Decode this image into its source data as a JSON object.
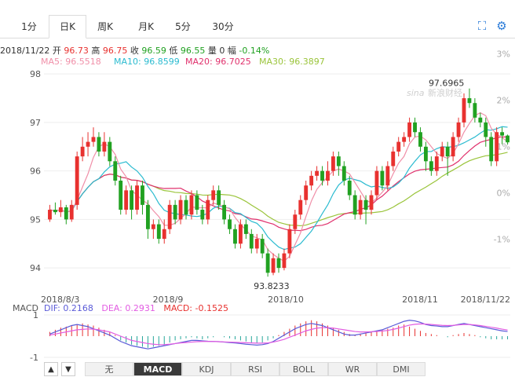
{
  "tabs": [
    "1分",
    "日K",
    "周K",
    "月K",
    "5分",
    "30分"
  ],
  "active_tab": 1,
  "controls": {
    "fullscreen_icon": "fullscreen-icon",
    "settings_icon": "settings-icon"
  },
  "quote": {
    "date": "2018/11/22",
    "open_label": "开",
    "open": "96.73",
    "high_label": "高",
    "high": "96.75",
    "close_label": "收",
    "close": "96.59",
    "low_label": "低",
    "low": "96.55",
    "vol_label": "量",
    "vol": "0",
    "change_label": "幅",
    "change": "-0.14%"
  },
  "ma": {
    "ma5": "MA5: 96.5518",
    "ma10": "MA10: 96.8599",
    "ma20": "MA20: 96.7025",
    "ma30": "MA30: 96.3897"
  },
  "colors": {
    "up": "#e8312f",
    "down": "#21a121",
    "ma5": "#f08fa8",
    "ma10": "#2bbbd0",
    "ma20": "#e0306c",
    "ma30": "#9ac43a",
    "dif": "#5b5bd8",
    "dea": "#e25ce2"
  },
  "chart_data": {
    "type": "candlestick",
    "y_ticks": [
      "98",
      "97",
      "96",
      "95",
      "94"
    ],
    "pct_ticks": [
      "3%",
      "2%",
      "1%",
      "0%",
      "-1%"
    ],
    "x_ticks": [
      "2018/8/3",
      "2018/9",
      "2018/10",
      "2018/11",
      "2018/11/22"
    ],
    "annotations": {
      "max": "97.6965",
      "min": "93.8233"
    },
    "watermark": "新浪财经",
    "candles": [
      [
        95.0,
        95.2,
        94.95,
        95.3
      ],
      [
        95.2,
        95.15,
        95.1,
        95.35
      ],
      [
        95.15,
        95.25,
        95.05,
        95.4
      ],
      [
        95.25,
        95.0,
        94.9,
        95.3
      ],
      [
        95.0,
        95.3,
        94.95,
        95.4
      ],
      [
        95.3,
        96.3,
        95.2,
        96.4
      ],
      [
        96.3,
        96.5,
        96.2,
        96.7
      ],
      [
        96.5,
        96.6,
        96.3,
        96.8
      ],
      [
        96.6,
        96.7,
        96.5,
        96.9
      ],
      [
        96.7,
        96.4,
        96.3,
        96.8
      ],
      [
        96.4,
        96.6,
        96.3,
        96.8
      ],
      [
        96.6,
        96.2,
        96.1,
        96.7
      ],
      [
        96.2,
        95.8,
        95.7,
        96.3
      ],
      [
        95.8,
        95.2,
        95.1,
        95.9
      ],
      [
        95.2,
        95.6,
        95.1,
        95.7
      ],
      [
        95.6,
        95.2,
        95.0,
        95.7
      ],
      [
        95.2,
        95.7,
        95.1,
        95.8
      ],
      [
        95.7,
        95.3,
        95.1,
        95.8
      ],
      [
        95.3,
        94.8,
        94.6,
        95.4
      ],
      [
        94.8,
        94.9,
        94.6,
        95.0
      ],
      [
        94.9,
        94.6,
        94.5,
        95.0
      ],
      [
        94.6,
        94.8,
        94.5,
        95.0
      ],
      [
        94.8,
        95.3,
        94.7,
        95.4
      ],
      [
        95.3,
        95.0,
        94.9,
        95.4
      ],
      [
        95.0,
        95.4,
        94.9,
        95.5
      ],
      [
        95.4,
        95.1,
        95.0,
        95.5
      ],
      [
        95.1,
        95.5,
        95.0,
        95.6
      ],
      [
        95.5,
        95.2,
        95.1,
        95.6
      ],
      [
        95.2,
        95.0,
        94.9,
        95.3
      ],
      [
        95.0,
        95.4,
        94.9,
        95.5
      ],
      [
        95.4,
        95.6,
        95.3,
        95.7
      ],
      [
        95.6,
        95.3,
        95.2,
        95.7
      ],
      [
        95.3,
        95.0,
        94.9,
        95.4
      ],
      [
        95.0,
        94.8,
        94.7,
        95.1
      ],
      [
        94.8,
        94.5,
        94.4,
        94.9
      ],
      [
        94.5,
        94.9,
        94.4,
        95.0
      ],
      [
        94.9,
        94.7,
        94.6,
        95.0
      ],
      [
        94.7,
        94.4,
        94.3,
        94.8
      ],
      [
        94.4,
        94.6,
        94.3,
        94.7
      ],
      [
        94.6,
        94.3,
        94.2,
        94.7
      ],
      [
        94.3,
        93.9,
        93.82,
        94.4
      ],
      [
        93.9,
        94.2,
        93.85,
        94.3
      ],
      [
        94.2,
        94.0,
        93.9,
        94.3
      ],
      [
        94.0,
        94.3,
        93.95,
        94.4
      ],
      [
        94.3,
        94.8,
        94.2,
        94.9
      ],
      [
        94.8,
        95.1,
        94.7,
        95.2
      ],
      [
        95.1,
        95.4,
        95.0,
        95.5
      ],
      [
        95.4,
        95.7,
        95.3,
        95.8
      ],
      [
        95.7,
        95.9,
        95.6,
        96.0
      ],
      [
        95.9,
        96.0,
        95.8,
        96.1
      ],
      [
        96.0,
        95.8,
        95.7,
        96.1
      ],
      [
        95.8,
        96.0,
        95.7,
        96.2
      ],
      [
        96.0,
        96.3,
        95.9,
        96.4
      ],
      [
        96.3,
        96.1,
        95.9,
        96.4
      ],
      [
        96.1,
        95.8,
        95.7,
        96.2
      ],
      [
        95.8,
        95.5,
        95.4,
        95.9
      ],
      [
        95.5,
        95.1,
        95.0,
        95.6
      ],
      [
        95.1,
        95.4,
        95.0,
        95.5
      ],
      [
        95.4,
        95.2,
        94.9,
        95.5
      ],
      [
        95.2,
        95.5,
        95.1,
        95.6
      ],
      [
        95.5,
        96.0,
        95.4,
        96.1
      ],
      [
        96.0,
        95.7,
        95.6,
        96.1
      ],
      [
        95.7,
        96.1,
        95.6,
        96.2
      ],
      [
        96.1,
        96.4,
        96.0,
        96.5
      ],
      [
        96.4,
        96.6,
        96.3,
        96.7
      ],
      [
        96.6,
        96.7,
        96.5,
        96.8
      ],
      [
        96.7,
        97.0,
        96.6,
        97.1
      ],
      [
        97.0,
        96.8,
        96.7,
        97.1
      ],
      [
        96.8,
        96.5,
        96.4,
        96.9
      ],
      [
        96.5,
        96.2,
        96.0,
        96.6
      ],
      [
        96.2,
        96.0,
        95.9,
        96.3
      ],
      [
        96.0,
        96.3,
        95.9,
        96.4
      ],
      [
        96.3,
        96.5,
        96.2,
        96.6
      ],
      [
        96.5,
        96.3,
        95.9,
        96.6
      ],
      [
        96.3,
        96.7,
        96.2,
        96.8
      ],
      [
        96.7,
        97.0,
        96.6,
        97.1
      ],
      [
        97.0,
        97.5,
        96.9,
        97.6
      ],
      [
        97.5,
        97.4,
        97.3,
        97.7
      ],
      [
        97.4,
        97.1,
        97.0,
        97.5
      ],
      [
        97.1,
        97.0,
        96.9,
        97.2
      ],
      [
        97.0,
        96.7,
        96.5,
        97.1
      ],
      [
        96.7,
        96.2,
        96.1,
        96.8
      ],
      [
        96.2,
        96.8,
        96.1,
        96.9
      ],
      [
        96.8,
        96.73,
        96.55,
        96.9
      ],
      [
        96.73,
        96.59,
        96.55,
        96.75
      ]
    ],
    "ma5_label": "MA5",
    "ma10_label": "MA10",
    "ma20_label": "MA20",
    "ma30_label": "MA30",
    "macd": {
      "title": "MACD",
      "dif": "DIF: 0.2168",
      "dea": "DEA: 0.2931",
      "macd": "MACD: -0.1525",
      "y_ticks": [
        "1",
        "-1"
      ],
      "hist": [
        0.2,
        0.3,
        0.4,
        0.45,
        0.5,
        0.55,
        0.6,
        0.55,
        0.5,
        0.4,
        0.3,
        0.2,
        0.05,
        -0.2,
        -0.3,
        -0.4,
        -0.45,
        -0.5,
        -0.55,
        -0.5,
        -0.45,
        -0.4,
        -0.3,
        -0.2,
        -0.15,
        -0.1,
        -0.05,
        -0.1,
        -0.15,
        -0.1,
        -0.05,
        0.0,
        -0.05,
        -0.1,
        -0.15,
        -0.2,
        -0.25,
        -0.3,
        -0.35,
        -0.3,
        -0.2,
        -0.1,
        0.05,
        0.2,
        0.35,
        0.5,
        0.6,
        0.7,
        0.75,
        0.7,
        0.6,
        0.5,
        0.4,
        0.3,
        0.2,
        0.1,
        0.05,
        0.1,
        0.15,
        0.2,
        0.25,
        0.3,
        0.35,
        0.4,
        0.5,
        0.55,
        0.45,
        0.35,
        0.25,
        0.15,
        0.1,
        0.05,
        0.0,
        -0.05,
        0.05,
        0.1,
        0.15,
        0.1,
        0.05,
        -0.05,
        -0.1,
        -0.15,
        -0.15,
        -0.15,
        -0.15
      ],
      "dif_line": [
        0.1,
        0.2,
        0.3,
        0.4,
        0.5,
        0.55,
        0.5,
        0.45,
        0.35,
        0.25,
        0.15,
        0.05,
        -0.1,
        -0.25,
        -0.35,
        -0.45,
        -0.5,
        -0.55,
        -0.6,
        -0.55,
        -0.5,
        -0.45,
        -0.4,
        -0.35,
        -0.3,
        -0.25,
        -0.2,
        -0.2,
        -0.22,
        -0.24,
        -0.25,
        -0.26,
        -0.28,
        -0.3,
        -0.32,
        -0.35,
        -0.38,
        -0.4,
        -0.42,
        -0.4,
        -0.35,
        -0.25,
        -0.1,
        0.05,
        0.2,
        0.35,
        0.45,
        0.55,
        0.6,
        0.55,
        0.5,
        0.4,
        0.3,
        0.2,
        0.1,
        0.05,
        0.05,
        0.1,
        0.15,
        0.2,
        0.25,
        0.3,
        0.4,
        0.5,
        0.6,
        0.7,
        0.75,
        0.72,
        0.65,
        0.55,
        0.5,
        0.48,
        0.45,
        0.45,
        0.5,
        0.55,
        0.6,
        0.55,
        0.5,
        0.45,
        0.4,
        0.35,
        0.3,
        0.25,
        0.22
      ],
      "dea_line": [
        0.05,
        0.1,
        0.15,
        0.2,
        0.25,
        0.3,
        0.32,
        0.34,
        0.33,
        0.3,
        0.25,
        0.2,
        0.1,
        0.0,
        -0.1,
        -0.2,
        -0.25,
        -0.3,
        -0.35,
        -0.38,
        -0.4,
        -0.4,
        -0.38,
        -0.35,
        -0.32,
        -0.3,
        -0.28,
        -0.26,
        -0.25,
        -0.25,
        -0.25,
        -0.26,
        -0.27,
        -0.28,
        -0.29,
        -0.3,
        -0.31,
        -0.32,
        -0.33,
        -0.33,
        -0.32,
        -0.28,
        -0.22,
        -0.15,
        -0.05,
        0.05,
        0.15,
        0.25,
        0.32,
        0.38,
        0.4,
        0.4,
        0.38,
        0.34,
        0.3,
        0.26,
        0.22,
        0.2,
        0.2,
        0.21,
        0.22,
        0.24,
        0.27,
        0.32,
        0.38,
        0.45,
        0.52,
        0.56,
        0.58,
        0.57,
        0.55,
        0.53,
        0.51,
        0.5,
        0.51,
        0.53,
        0.55,
        0.55,
        0.53,
        0.5,
        0.46,
        0.42,
        0.38,
        0.33,
        0.29
      ]
    }
  },
  "bottom_tabs": [
    "无",
    "MACD",
    "KDJ",
    "RSI",
    "BOLL",
    "WR",
    "DMI"
  ],
  "bottom_active": 1,
  "bottom_arrows": [
    "▲",
    "▼"
  ]
}
